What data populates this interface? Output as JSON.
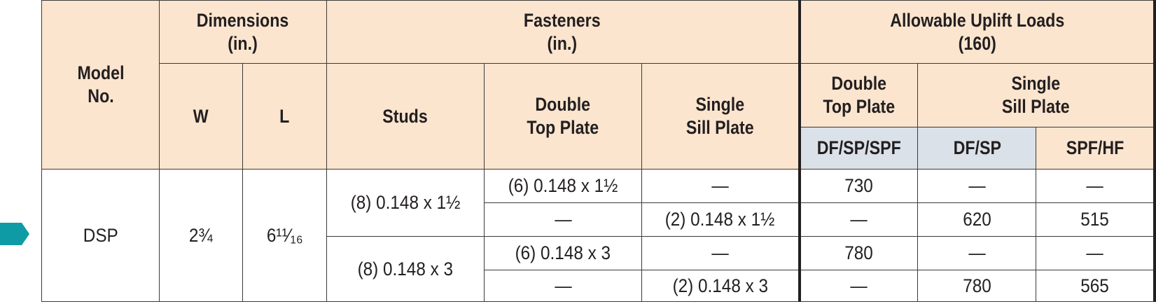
{
  "marker_color": "#0e9ba6",
  "header_bg": "#fbe5cf",
  "subheader_bg": "#dbe1e8",
  "headers": {
    "model_no": "Model No.",
    "dimensions": "Dimensions (in.)",
    "fasteners": "Fasteners (in.)",
    "allowable": "Allowable Uplift Loads (160)",
    "w": "W",
    "l": "L",
    "studs": "Studs",
    "double_top_plate": "Double Top Plate",
    "single_sill_plate": "Single Sill Plate",
    "load_double_top_plate": "Double Top Plate",
    "load_single_sill_plate": "Single Sill Plate",
    "df_sp_spf": "DF/SP/SPF",
    "df_sp": "DF/SP",
    "spf_hf": "SPF/HF"
  },
  "model": "DSP",
  "width": "2¾",
  "length": "6¹¹⁄₁₆",
  "stud_groups": [
    {
      "studs": "(8) 0.148 x 1½",
      "rows": [
        {
          "double_top_plate": "(6) 0.148 x 1½",
          "single_sill_plate": "—",
          "df_sp_spf": "730",
          "df_sp": "—",
          "spf_hf": "—"
        },
        {
          "double_top_plate": "—",
          "single_sill_plate": "(2) 0.148 x 1½",
          "df_sp_spf": "—",
          "df_sp": "620",
          "spf_hf": "515"
        }
      ]
    },
    {
      "studs": "(8) 0.148 x 3",
      "rows": [
        {
          "double_top_plate": "(6) 0.148 x 3",
          "single_sill_plate": "—",
          "df_sp_spf": "780",
          "df_sp": "—",
          "spf_hf": "—"
        },
        {
          "double_top_plate": "—",
          "single_sill_plate": "(2) 0.148 x 3",
          "df_sp_spf": "—",
          "df_sp": "780",
          "spf_hf": "565"
        }
      ]
    }
  ]
}
